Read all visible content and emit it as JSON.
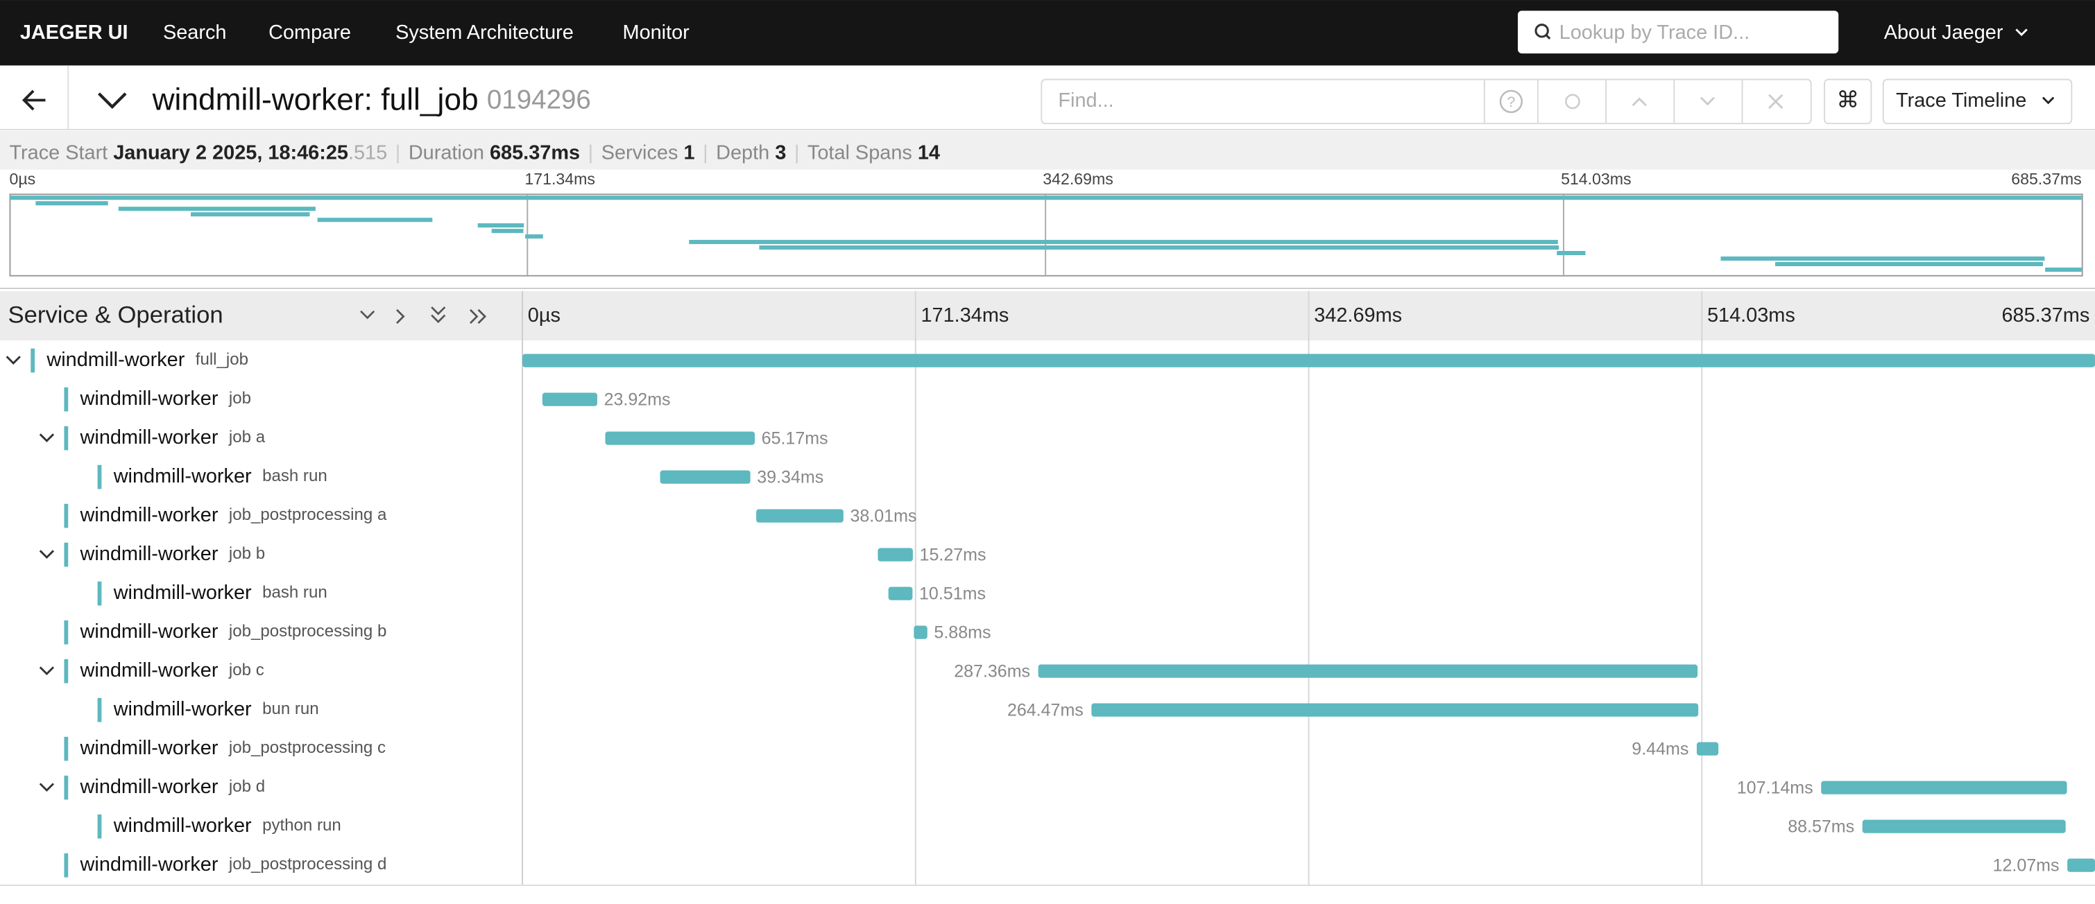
{
  "nav": {
    "brand": "JAEGER UI",
    "items": [
      "Search",
      "Compare",
      "System Architecture",
      "Monitor"
    ],
    "lookup_placeholder": "Lookup by Trace ID...",
    "about": "About Jaeger"
  },
  "trace": {
    "title": "windmill-worker: full_job",
    "id": "0194296",
    "find_placeholder": "Find...",
    "view": "Trace Timeline",
    "shortcut": "⌘"
  },
  "meta": {
    "start_label": "Trace Start",
    "start_main": "January 2 2025, 18:46:25",
    "start_ms": ".515",
    "duration_label": "Duration",
    "duration": "685.37ms",
    "services_label": "Services",
    "services": 1,
    "depth_label": "Depth",
    "depth": 3,
    "spans_label": "Total Spans",
    "spans": 14
  },
  "timeline": {
    "header": "Service & Operation",
    "ticks": [
      {
        "value": 0,
        "label": "0µs"
      },
      {
        "value": 171.34,
        "label": "171.34ms"
      },
      {
        "value": 342.69,
        "label": "342.69ms"
      },
      {
        "value": 514.03,
        "label": "514.03ms"
      },
      {
        "value": 685.37,
        "label": "685.37ms"
      }
    ]
  },
  "spans": [
    {
      "service": "windmill-worker",
      "operation": "full_job",
      "depth": 0,
      "start_ms": 0,
      "duration_ms": 685.37
    },
    {
      "service": "windmill-worker",
      "operation": "job",
      "depth": 1,
      "start_ms": 8.7,
      "duration_ms": 23.92,
      "duration_label": "23.92ms"
    },
    {
      "service": "windmill-worker",
      "operation": "job a",
      "depth": 1,
      "start_ms": 36.1,
      "duration_ms": 65.17,
      "duration_label": "65.17ms"
    },
    {
      "service": "windmill-worker",
      "operation": "bash run",
      "depth": 2,
      "start_ms": 60.0,
      "duration_ms": 39.34,
      "duration_label": "39.34ms"
    },
    {
      "service": "windmill-worker",
      "operation": "job_postprocessing a",
      "depth": 1,
      "start_ms": 101.9,
      "duration_ms": 38.01,
      "duration_label": "38.01ms"
    },
    {
      "service": "windmill-worker",
      "operation": "job b",
      "depth": 1,
      "start_ms": 154.9,
      "duration_ms": 15.27,
      "duration_label": "15.27ms"
    },
    {
      "service": "windmill-worker",
      "operation": "bash run",
      "depth": 2,
      "start_ms": 159.5,
      "duration_ms": 10.51,
      "duration_label": "10.51ms"
    },
    {
      "service": "windmill-worker",
      "operation": "job_postprocessing b",
      "depth": 1,
      "start_ms": 170.6,
      "duration_ms": 5.88,
      "duration_label": "5.88ms"
    },
    {
      "service": "windmill-worker",
      "operation": "job c",
      "depth": 1,
      "start_ms": 224.8,
      "duration_ms": 287.36,
      "duration_label": "287.36ms"
    },
    {
      "service": "windmill-worker",
      "operation": "bun run",
      "depth": 2,
      "start_ms": 248.0,
      "duration_ms": 264.47,
      "duration_label": "264.47ms"
    },
    {
      "service": "windmill-worker",
      "operation": "job_postprocessing c",
      "depth": 1,
      "start_ms": 511.8,
      "duration_ms": 9.44,
      "duration_label": "9.44ms"
    },
    {
      "service": "windmill-worker",
      "operation": "job d",
      "depth": 1,
      "start_ms": 566.0,
      "duration_ms": 107.14,
      "duration_label": "107.14ms"
    },
    {
      "service": "windmill-worker",
      "operation": "python run",
      "depth": 2,
      "start_ms": 584.0,
      "duration_ms": 88.57,
      "duration_label": "88.57ms"
    },
    {
      "service": "windmill-worker",
      "operation": "job_postprocessing d",
      "depth": 1,
      "start_ms": 673.3,
      "duration_ms": 12.07,
      "duration_label": "12.07ms"
    }
  ]
}
